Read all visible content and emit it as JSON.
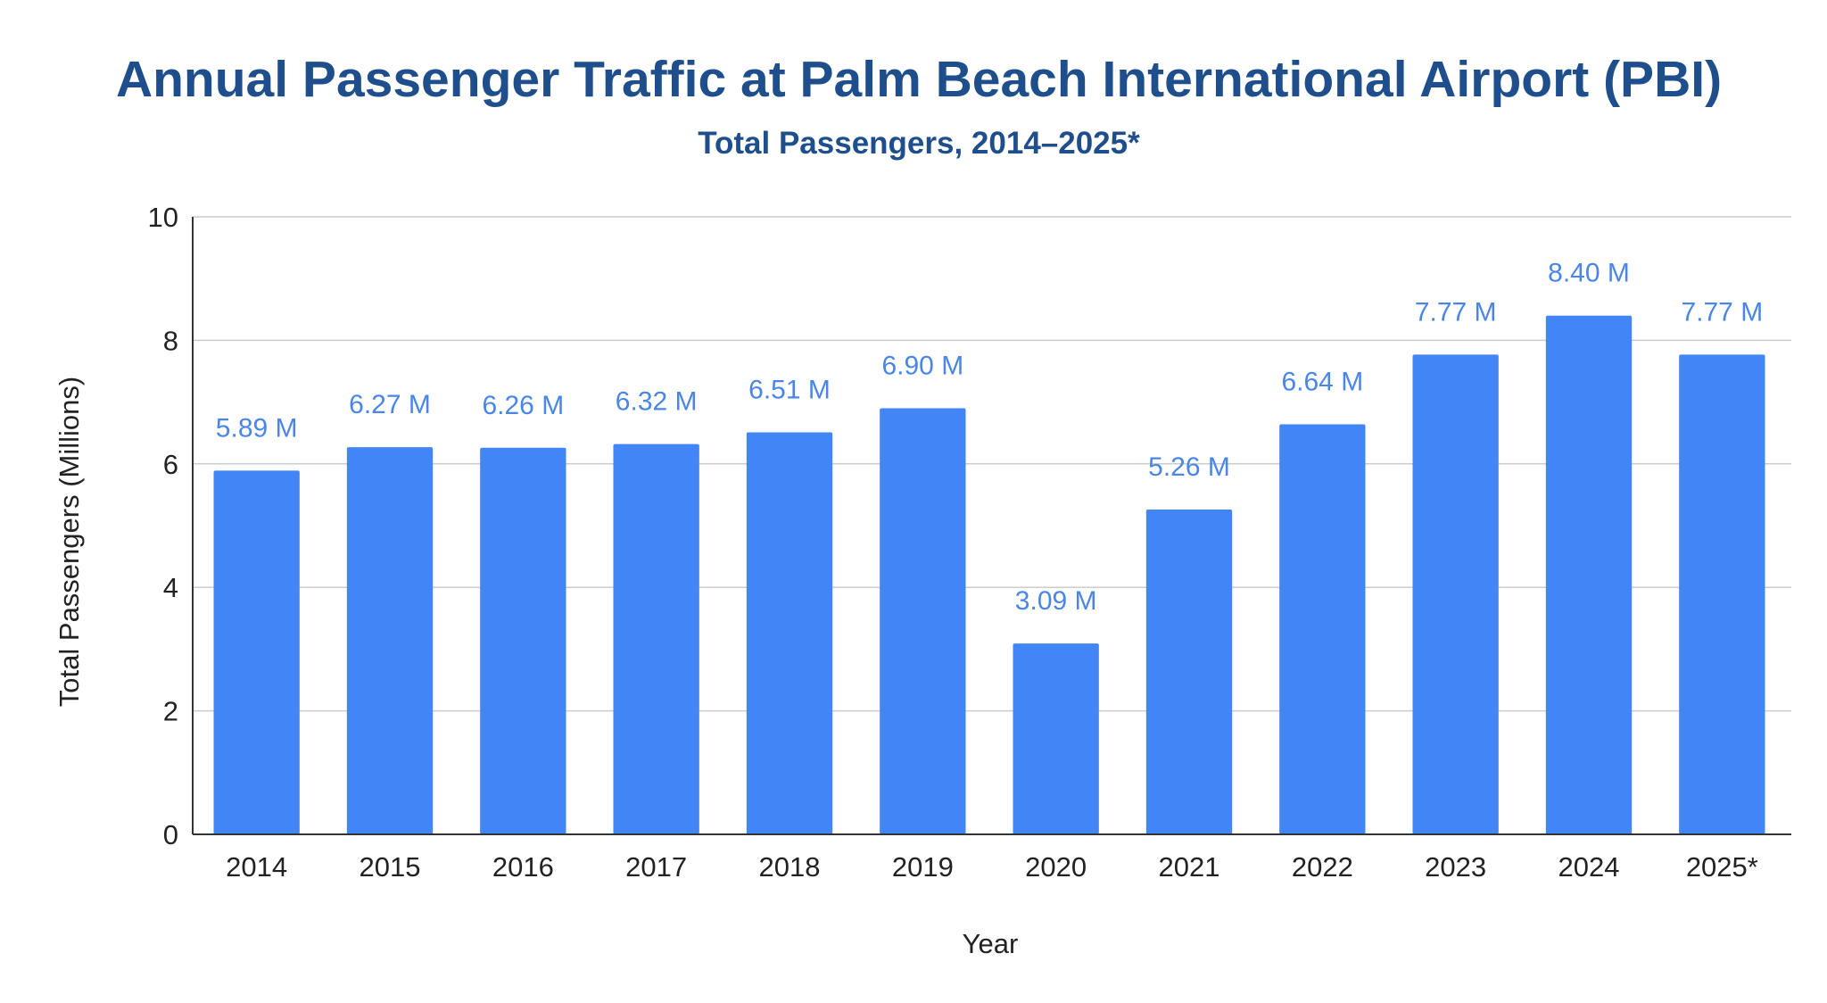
{
  "colors": {
    "title": "#1f4e8c",
    "bar": "#4285f4",
    "data_label": "#4a86e8",
    "grid": "#cccccc",
    "axis": "#333333"
  },
  "chart_data": {
    "type": "bar",
    "title": "Annual Passenger Traffic at Palm Beach International Airport (PBI)",
    "subtitle": "Total Passengers, 2014–2025*",
    "xlabel": "Year",
    "ylabel": "Total Passengers (Millions)",
    "ylim": [
      0,
      10
    ],
    "yticks": [
      "0",
      "2",
      "4",
      "6",
      "8",
      "10"
    ],
    "grid": true,
    "legend": "none",
    "categories": [
      "2014",
      "2015",
      "2016",
      "2017",
      "2018",
      "2019",
      "2020",
      "2021",
      "2022",
      "2023",
      "2024",
      "2025*"
    ],
    "values": [
      5.89,
      6.27,
      6.26,
      6.32,
      6.51,
      6.9,
      3.09,
      5.26,
      6.64,
      7.77,
      8.4,
      7.77
    ],
    "data_labels": [
      "5.89 M",
      "6.27 M",
      "6.26 M",
      "6.32 M",
      "6.51 M",
      "6.90 M",
      "3.09 M",
      "5.26 M",
      "6.64 M",
      "7.77 M",
      "8.40 M",
      "7.77 M"
    ]
  }
}
